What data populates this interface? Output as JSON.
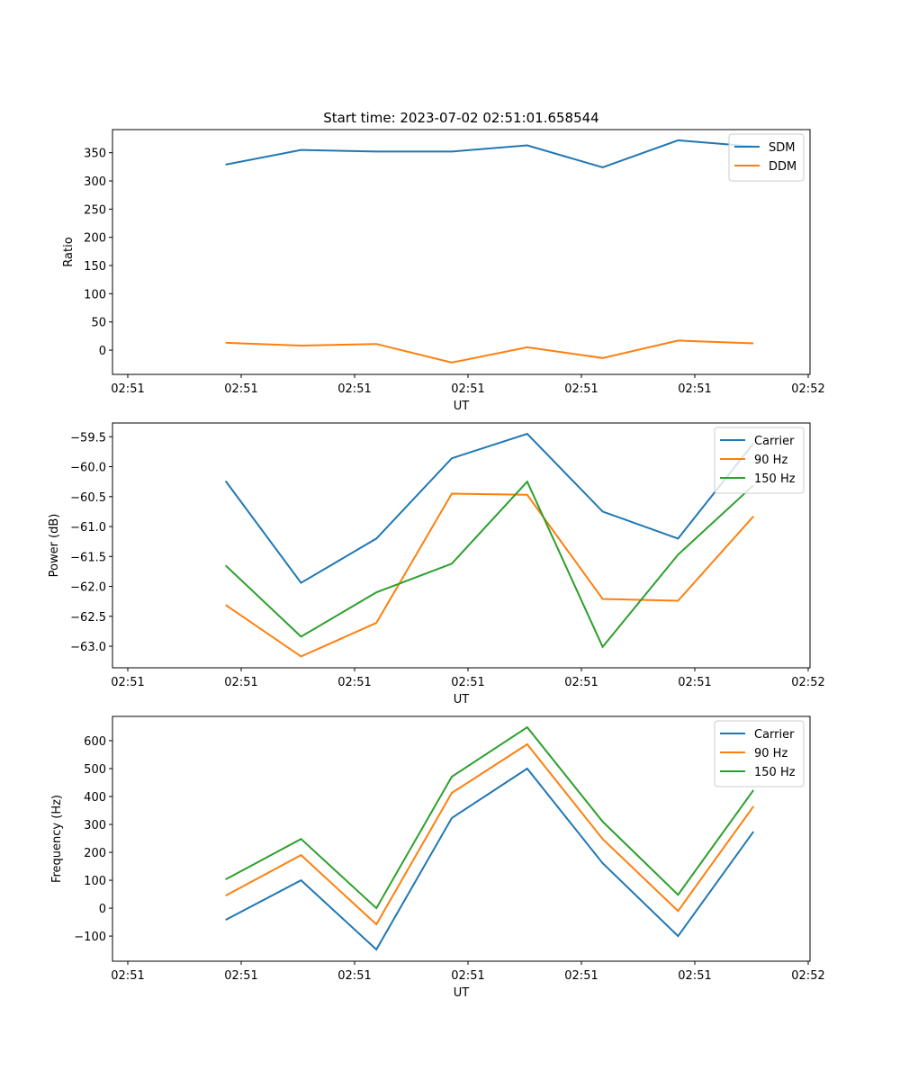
{
  "figure_title": "Start time: 2023-07-02 02:51:01.658544",
  "chart_data": [
    {
      "type": "line",
      "title": "Start time: 2023-07-02 02:51:01.658544",
      "xlabel": "UT",
      "ylabel": "Ratio",
      "x_tick_labels": [
        "02:51",
        "02:51",
        "02:51",
        "02:51",
        "02:51",
        "02:51",
        "02:52"
      ],
      "x_index": [
        1,
        2,
        3,
        4,
        5,
        6,
        7,
        8
      ],
      "xlim": [
        -0.5,
        8.75
      ],
      "ylim": [
        -43,
        391
      ],
      "y_ticks": [
        0,
        50,
        100,
        150,
        200,
        250,
        300,
        350
      ],
      "y_tick_labels": [
        "0",
        "50",
        "100",
        "150",
        "200",
        "250",
        "300",
        "350"
      ],
      "legend_position": "top-right",
      "series": [
        {
          "name": "SDM",
          "color": "#1f77b4",
          "values": [
            329,
            355,
            352,
            352,
            363,
            324,
            372,
            361
          ]
        },
        {
          "name": "DDM",
          "color": "#ff7f0e",
          "values": [
            13,
            8,
            11,
            -22,
            5,
            -14,
            17,
            12
          ]
        }
      ]
    },
    {
      "type": "line",
      "title": "",
      "xlabel": "UT",
      "ylabel": "Power (dB)",
      "x_tick_labels": [
        "02:51",
        "02:51",
        "02:51",
        "02:51",
        "02:51",
        "02:51",
        "02:52"
      ],
      "x_index": [
        1,
        2,
        3,
        4,
        5,
        6,
        7,
        8
      ],
      "xlim": [
        -0.5,
        8.75
      ],
      "ylim": [
        -63.36,
        -59.27
      ],
      "y_ticks": [
        -63.0,
        -62.5,
        -62.0,
        -61.5,
        -61.0,
        -60.5,
        -60.0,
        -59.5
      ],
      "y_tick_labels": [
        "−63.0",
        "−62.5",
        "−62.0",
        "−61.5",
        "−61.0",
        "−60.5",
        "−60.0",
        "−59.5"
      ],
      "legend_position": "top-right",
      "series": [
        {
          "name": "Carrier",
          "color": "#1f77b4",
          "values": [
            -60.24,
            -61.94,
            -61.2,
            -59.86,
            -59.45,
            -60.75,
            -61.2,
            -59.61
          ]
        },
        {
          "name": "90 Hz",
          "color": "#ff7f0e",
          "values": [
            -62.31,
            -63.17,
            -62.61,
            -60.45,
            -60.47,
            -62.21,
            -62.24,
            -60.83
          ]
        },
        {
          "name": "150 Hz",
          "color": "#2ca02c",
          "values": [
            -61.65,
            -62.84,
            -62.1,
            -61.62,
            -60.25,
            -63.01,
            -61.47,
            -60.31
          ]
        }
      ]
    },
    {
      "type": "line",
      "title": "",
      "xlabel": "UT",
      "ylabel": "Frequency (Hz)",
      "x_tick_labels": [
        "02:51",
        "02:51",
        "02:51",
        "02:51",
        "02:51",
        "02:51",
        "02:52"
      ],
      "x_index": [
        1,
        2,
        3,
        4,
        5,
        6,
        7,
        8
      ],
      "xlim": [
        -0.5,
        8.75
      ],
      "ylim": [
        -190,
        687
      ],
      "y_ticks": [
        -100,
        0,
        100,
        200,
        300,
        400,
        500,
        600
      ],
      "y_tick_labels": [
        "−100",
        "0",
        "100",
        "200",
        "300",
        "400",
        "500",
        "600"
      ],
      "legend_position": "top-right",
      "series": [
        {
          "name": "Carrier",
          "color": "#1f77b4",
          "values": [
            -42,
            100,
            -148,
            323,
            500,
            161,
            -100,
            274
          ]
        },
        {
          "name": "90 Hz",
          "color": "#ff7f0e",
          "values": [
            45,
            190,
            -58,
            413,
            587,
            248,
            -10,
            365
          ]
        },
        {
          "name": "150 Hz",
          "color": "#2ca02c",
          "values": [
            103,
            248,
            0,
            471,
            648,
            310,
            48,
            423
          ]
        }
      ]
    }
  ]
}
